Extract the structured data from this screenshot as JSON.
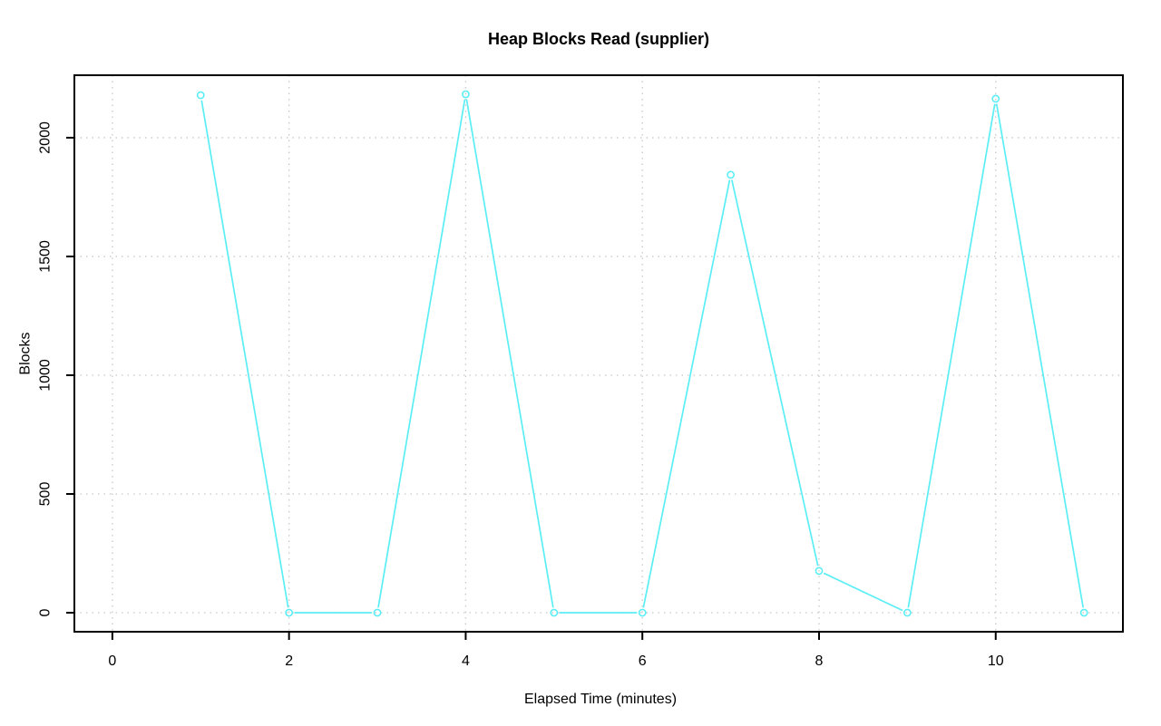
{
  "chart_data": {
    "type": "line",
    "title": "Heap Blocks Read (supplier)",
    "xlabel": "Elapsed Time (minutes)",
    "ylabel": "Blocks",
    "x": [
      1,
      2,
      3,
      4,
      5,
      6,
      7,
      8,
      9,
      10,
      11
    ],
    "values": [
      2179,
      0,
      0,
      2183,
      0,
      0,
      1844,
      176,
      0,
      2164,
      0
    ],
    "series_name": "supplier heap blocks read",
    "x_ticks": [
      0,
      2,
      4,
      6,
      8,
      10
    ],
    "x_tick_labels": [
      "0",
      "2",
      "4",
      "6",
      "8",
      "10"
    ],
    "y_ticks": [
      0,
      500,
      1000,
      1500,
      2000
    ],
    "y_tick_labels": [
      "0",
      "500",
      "1000",
      "1500",
      "2000"
    ],
    "xlim": [
      -0.43,
      11.44
    ],
    "ylim": [
      -80,
      2263
    ],
    "grid": true,
    "grid_style": "dotted",
    "legend": "none",
    "marker": "open-circle",
    "line_color": "#5BEEF5",
    "grid_color": "#C8C8C8",
    "axis_color": "#000000",
    "background": "#FFFFFF"
  }
}
